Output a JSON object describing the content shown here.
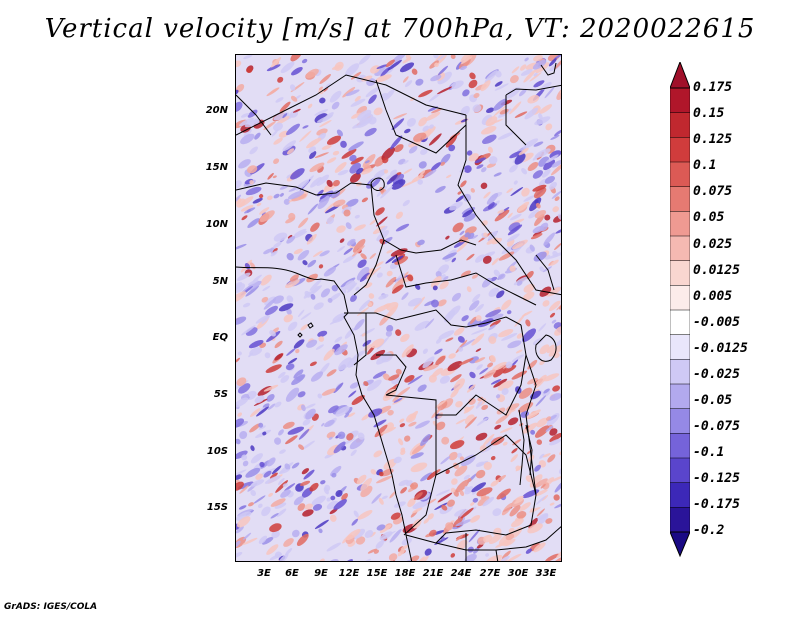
{
  "title": "Vertical velocity [m/s] at 700hPa, VT: 2020022615",
  "map": {
    "lat_labels": [
      "20N",
      "15N",
      "10N",
      "5N",
      "EQ",
      "5S",
      "10S",
      "15S"
    ],
    "lat_values": [
      20,
      15,
      10,
      5,
      0,
      -5,
      -10,
      -15
    ],
    "lon_labels": [
      "3E",
      "6E",
      "9E",
      "12E",
      "15E",
      "18E",
      "21E",
      "24E",
      "27E",
      "30E",
      "33E"
    ],
    "lon_values": [
      3,
      6,
      9,
      12,
      15,
      18,
      21,
      24,
      27,
      30,
      33
    ],
    "lat_range": [
      -19.5,
      24.5
    ],
    "lon_range": [
      0,
      34.5
    ]
  },
  "colorbar": {
    "labels": [
      "0.175",
      "0.15",
      "0.125",
      "0.1",
      "0.075",
      "0.05",
      "0.025",
      "0.0125",
      "0.005",
      "-0.005",
      "-0.0125",
      "-0.025",
      "-0.05",
      "-0.075",
      "-0.1",
      "-0.125",
      "-0.175",
      "-0.2"
    ],
    "colors": [
      "#b0162a",
      "#c0282f",
      "#d03c3c",
      "#dc5a55",
      "#e67a72",
      "#ef9a92",
      "#f5b9b2",
      "#f9d6d0",
      "#fcecea",
      "#ffffff",
      "#e9e6fb",
      "#cfc9f5",
      "#b2a9ee",
      "#9589e6",
      "#7563da",
      "#5a45cc",
      "#3c28b8",
      "#2a1499"
    ],
    "top_triangle_color": "#a0102a",
    "bottom_triangle_color": "#1a0a85"
  },
  "footer": "GrADS: IGES/COLA"
}
